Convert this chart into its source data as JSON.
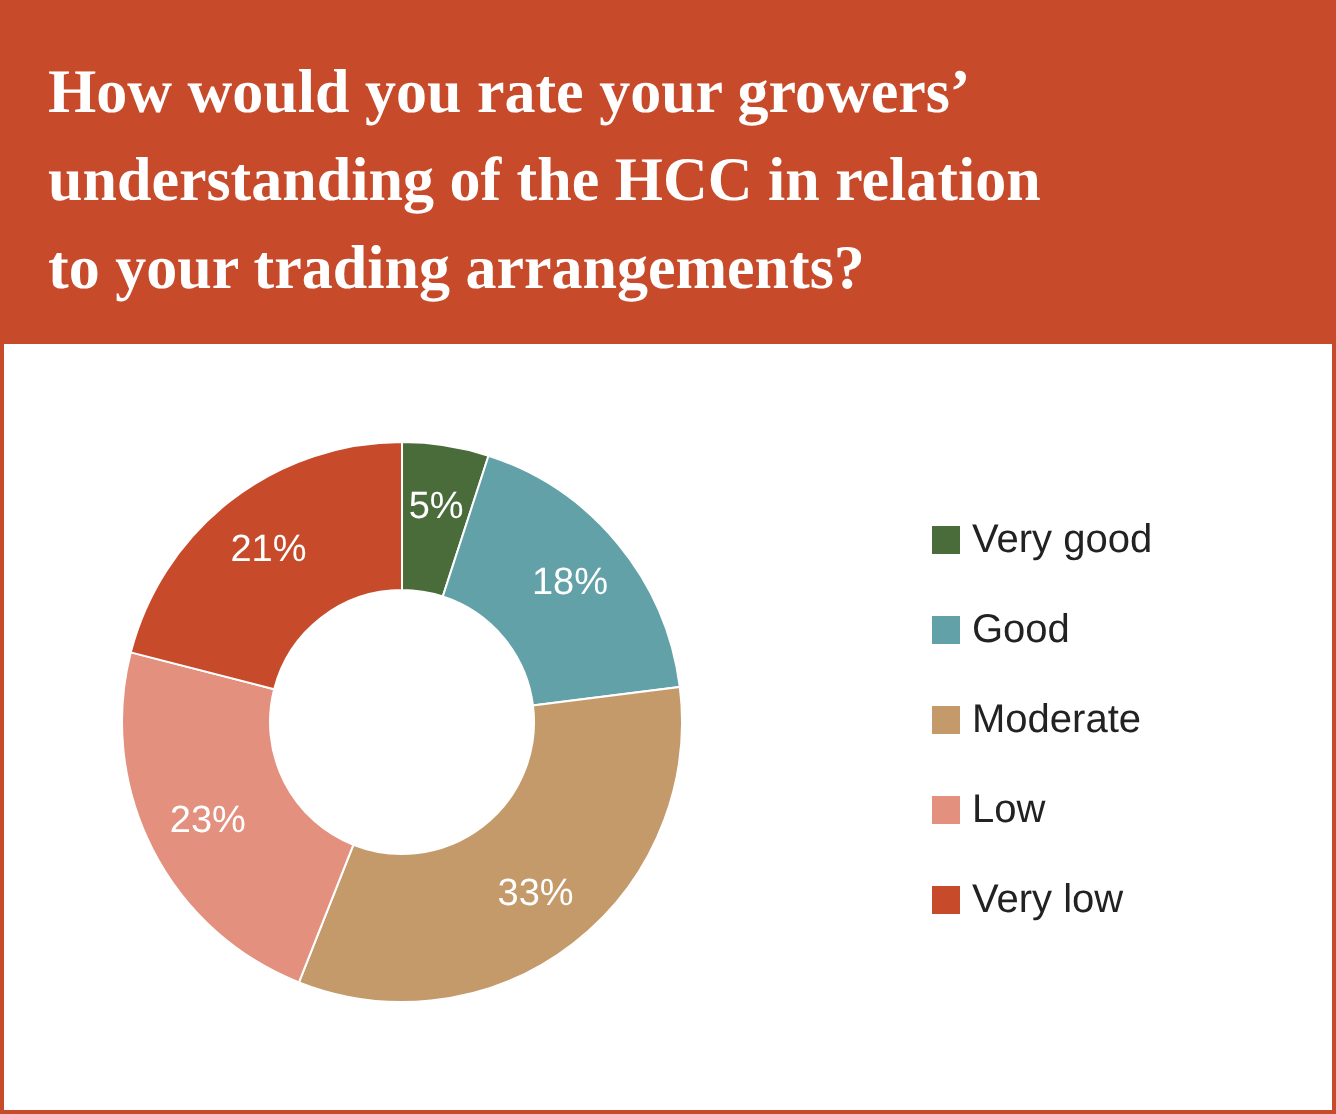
{
  "chart_data": {
    "type": "donut",
    "title": "How would you rate your growers’ understanding of the HCC in relation to your trading arrangements?",
    "categories": [
      "Very good",
      "Good",
      "Moderate",
      "Low",
      "Very low"
    ],
    "values": [
      5,
      18,
      33,
      23,
      21
    ],
    "colors": [
      "#4a6b3a",
      "#62a1a8",
      "#c49a6a",
      "#e4907e",
      "#c74b2b"
    ],
    "value_labels": [
      "5%",
      "18%",
      "33%",
      "23%",
      "21%"
    ],
    "legend": "right"
  }
}
